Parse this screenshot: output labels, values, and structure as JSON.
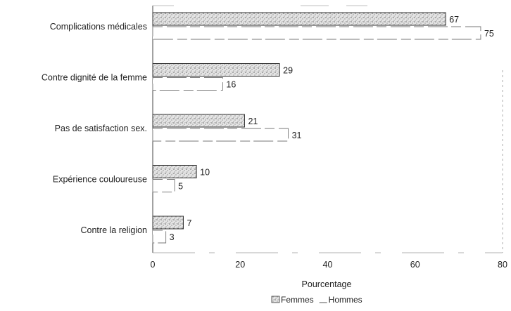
{
  "chart_data": {
    "type": "bar",
    "orientation": "horizontal",
    "categories": [
      "Complications médicales",
      "Contre dignité de la femme",
      "Pas de satisfaction sex.",
      "Expérience couloureuse",
      "Contre la religion"
    ],
    "series": [
      {
        "name": "Femmes",
        "values": [
          67,
          29,
          21,
          10,
          7
        ],
        "pattern": "stippled",
        "color": "#cfcfcf"
      },
      {
        "name": "Hommes",
        "values": [
          75,
          16,
          31,
          5,
          3
        ],
        "pattern": "outline",
        "color": "#ffffff"
      }
    ],
    "xlabel": "Pourcentage",
    "xlim": [
      0,
      80
    ],
    "xticks": [
      "0",
      "20",
      "40",
      "60",
      "80"
    ],
    "grid": false,
    "legend_position": "bottom"
  }
}
